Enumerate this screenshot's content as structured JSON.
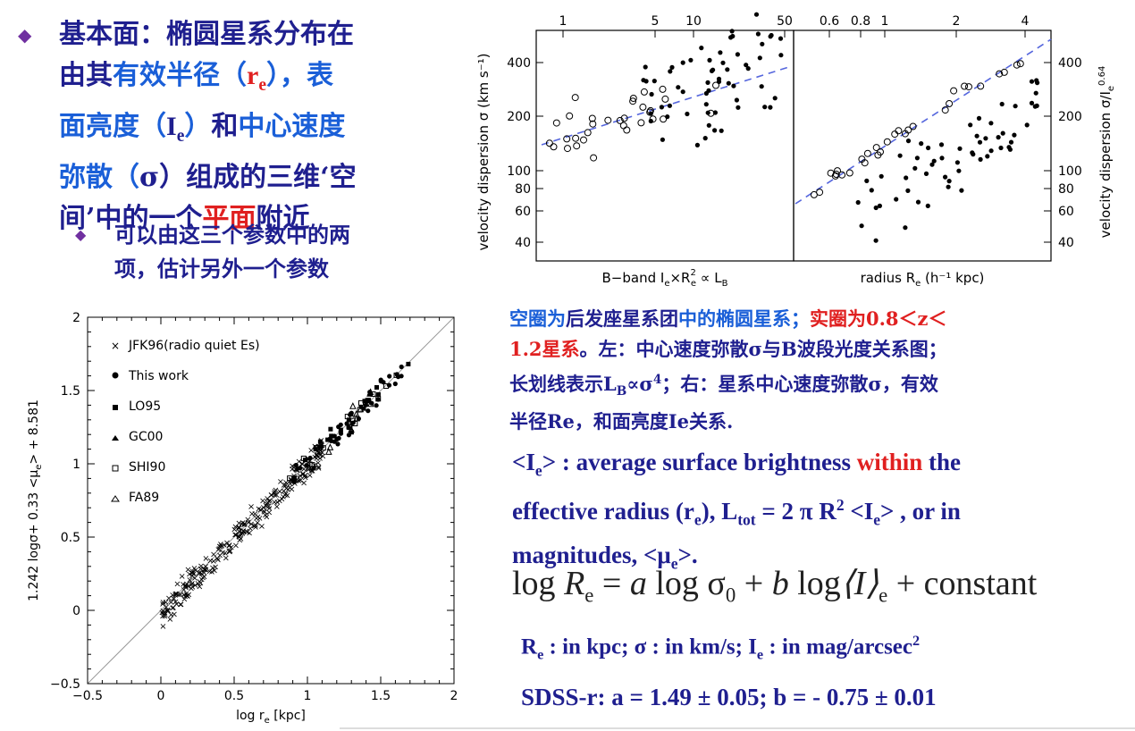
{
  "left_text": {
    "p1_a": "基本面：椭圆星系分布在",
    "p1_b": "由其",
    "p1_c": "有效半径（",
    "p1_re": "r",
    "p1_re_sub": "e",
    "p1_d": "），",
    "p1_e": "表",
    "p1_f": "面亮度（",
    "p1_ie": "I",
    "p1_ie_sub": "e",
    "p1_g": "）",
    "p1_h": "和",
    "p1_i": "中心速度",
    "p1_j": "弥散（",
    "p1_sigma": "σ",
    "p1_k": "）组成的三维‘空",
    "p1_l": "间’中的一个",
    "p1_m": "平面",
    "p1_n": "附近",
    "p2_a": "可以由这三个参数中的两",
    "p2_b": "项，估计另外一个参数"
  },
  "caption": {
    "c1": "空圈为",
    "c2": "后发座星系团",
    "c3": "中的椭圆星系；",
    "c4": "实圈为0.8＜z＜",
    "c5": "1.2星系",
    "c6": "。左：中心速度弥散σ与B波段光度关系图；",
    "c7": "长划线表示L",
    "c7_sub": "B",
    "c8": "∝σ",
    "c8_sup": "4",
    "c9": "；右：星系中心速度弥散σ，有效",
    "c10": "半径Re，和面亮度Ie关系."
  },
  "definition": {
    "a": "<I",
    "a_sub": "e",
    "b": "> : average surface brightness ",
    "c": "within",
    "d": " the",
    "e": "effective radius (r",
    "e_sub": "e",
    "f": "), L",
    "f_sub": "tot",
    "g": " = 2 π R",
    "g_sub": "e",
    "g_sup": "2",
    "h": " <I",
    "h_sub": "e",
    "i": "> , or in",
    "j": "magnitudes, <μ",
    "j_sub": "e",
    "k": ">."
  },
  "equation": {
    "log1": "log",
    "R": "R",
    "Rsub": "e",
    "eq": " = ",
    "a": "a",
    "log2": " log ",
    "sigma": "σ",
    "sigmasub": "0",
    "plus": " + ",
    "b": "b",
    "log3": " log",
    "I": "⟨I⟩",
    "Isub": "e",
    "const": " + constant"
  },
  "units": {
    "a": "R",
    "a_sub": "e",
    "b": " : in kpc; σ : in km/s; I",
    "b_sub": "e",
    "c": "  : in mag/arcsec",
    "c_sup": "2"
  },
  "sdss": "SDSS-r: a = 1.49 ± 0.05; b = - 0.75 ± 0.01",
  "chart_data": [
    {
      "type": "scatter",
      "name_panel": "top-left",
      "xlabel": "B−band I",
      "xlabel_sub": "e",
      "xlabel_2": "×R",
      "xlabel_sup": "2",
      "xlabel_sub2": "e",
      "xlabel_3": " ∝ L",
      "xlabel_sub3": "B",
      "ylabel": "velocity dispersion σ (km s⁻¹)",
      "x_top_ticks": [
        "1",
        "5",
        "10",
        "50"
      ],
      "y_ticks": [
        "400",
        "200",
        "100",
        "80",
        "60",
        "40"
      ]
    },
    {
      "type": "scatter",
      "name_panel": "top-right",
      "xlabel": "radius R",
      "xlabel_sub": "e",
      "xlabel_2": " (h⁻¹ kpc)",
      "ylabel_right": "velocity dispersion σ/I",
      "ylabel_right_sub": "e",
      "ylabel_right_sup": "0.64",
      "x_top_ticks": [
        "0.6",
        "0.8",
        "1",
        "2",
        "4"
      ],
      "y_ticks": [
        "400",
        "200",
        "100",
        "80",
        "60",
        "40"
      ]
    },
    {
      "type": "scatter",
      "name_panel": "bottom",
      "xlabel": "log r",
      "xlabel_sub": "e",
      "xlabel_2": " [kpc]",
      "ylabel": "1.242 logσ+ 0.33 <μ",
      "ylabel_sub": "e",
      "ylabel_2": "> + 8.581",
      "x_ticks": [
        "−0.5",
        "0",
        "0.5",
        "1",
        "1.5",
        "2"
      ],
      "y_ticks": [
        "2",
        "1.5",
        "1",
        "0.5",
        "0",
        "−0.5"
      ],
      "xlim": [
        -0.5,
        2
      ],
      "ylim": [
        -0.5,
        2
      ],
      "legend": [
        "JFK96(radio quiet Es)",
        "This work",
        "LO95",
        "GC00",
        "SHI90",
        "FA89"
      ]
    }
  ]
}
